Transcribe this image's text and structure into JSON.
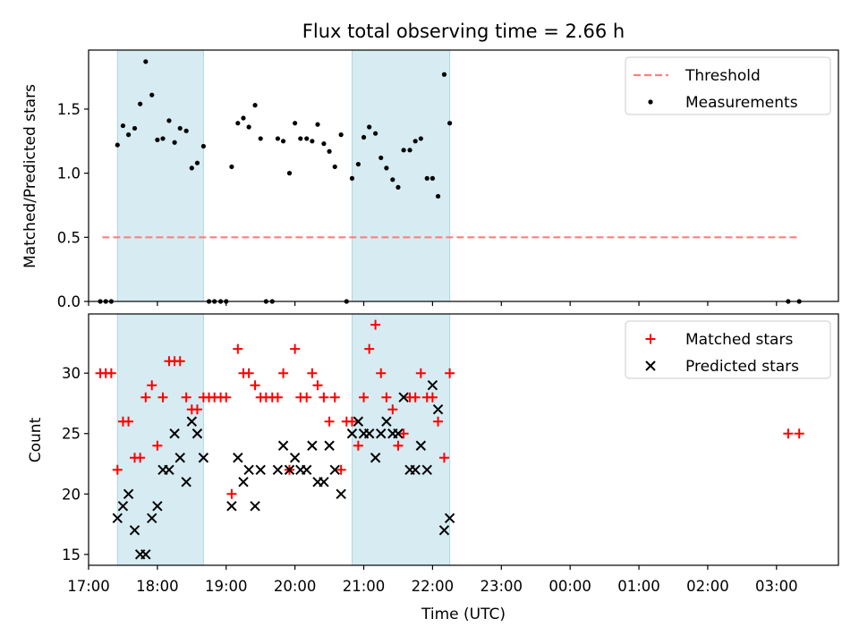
{
  "chart_data": [
    {
      "type": "scatter",
      "title": "Flux total observing time = 2.66 h",
      "xlabel": "",
      "ylabel": "Matched/Predicted stars",
      "xlim": [
        17.0,
        27.9
      ],
      "ylim": [
        0,
        1.96
      ],
      "yticks": [
        0.0,
        0.5,
        1.0,
        1.5
      ],
      "ytick_labels": [
        "0.0",
        "0.5",
        "1.0",
        "1.5"
      ],
      "shaded_spans": [
        [
          17.42,
          18.67
        ],
        [
          20.83,
          22.25
        ]
      ],
      "legend": {
        "position": "top-right",
        "entries": [
          "Threshold",
          "Measurements"
        ]
      },
      "threshold": {
        "name": "Threshold",
        "value": 0.5,
        "x_range": [
          17.2,
          27.3
        ],
        "color": "#ff7f7f"
      },
      "series": [
        {
          "name": "Measurements",
          "color": "#000000",
          "x": [
            17.17,
            17.25,
            17.33,
            17.42,
            17.5,
            17.58,
            17.67,
            17.75,
            17.83,
            17.92,
            18.0,
            18.08,
            18.17,
            18.25,
            18.33,
            18.42,
            18.5,
            18.58,
            18.67,
            18.75,
            18.83,
            18.92,
            19.0,
            19.08,
            19.17,
            19.25,
            19.33,
            19.42,
            19.5,
            19.58,
            19.67,
            19.75,
            19.83,
            19.92,
            20.0,
            20.08,
            20.17,
            20.25,
            20.33,
            20.42,
            20.5,
            20.58,
            20.67,
            20.75,
            20.83,
            20.92,
            21.0,
            21.08,
            21.17,
            21.25,
            21.33,
            21.42,
            21.5,
            21.58,
            21.67,
            21.75,
            21.83,
            21.92,
            22.0,
            22.08,
            22.17,
            22.25,
            27.17,
            27.33
          ],
          "y": [
            0,
            0,
            0,
            1.22,
            1.37,
            1.3,
            1.35,
            1.54,
            1.87,
            1.61,
            1.26,
            1.27,
            1.41,
            1.24,
            1.35,
            1.33,
            1.04,
            1.08,
            1.21,
            0,
            0,
            0,
            0,
            1.05,
            1.39,
            1.43,
            1.36,
            1.53,
            1.27,
            0,
            0,
            1.27,
            1.25,
            1.0,
            1.39,
            1.27,
            1.27,
            1.25,
            1.38,
            1.23,
            1.17,
            1.05,
            1.3,
            0,
            0.96,
            1.07,
            1.28,
            1.36,
            1.31,
            1.12,
            1.04,
            0.95,
            0.89,
            1.18,
            1.18,
            1.25,
            1.27,
            0.96,
            0.96,
            0.82,
            1.77,
            1.39,
            0,
            0
          ]
        }
      ]
    },
    {
      "type": "scatter",
      "title": "",
      "xlabel": "Time (UTC)",
      "ylabel": "Count",
      "xlim": [
        17.0,
        27.9
      ],
      "ylim": [
        14.1,
        34.9
      ],
      "yticks": [
        15,
        20,
        25,
        30
      ],
      "ytick_labels": [
        "15",
        "20",
        "25",
        "30"
      ],
      "xticks": [
        17,
        18,
        19,
        20,
        21,
        22,
        23,
        24,
        25,
        26,
        27
      ],
      "xtick_labels": [
        "17:00",
        "18:00",
        "19:00",
        "20:00",
        "21:00",
        "22:00",
        "23:00",
        "00:00",
        "01:00",
        "02:00",
        "03:00"
      ],
      "shaded_spans": [
        [
          17.42,
          18.67
        ],
        [
          20.83,
          22.25
        ]
      ],
      "legend": {
        "position": "top-right",
        "entries": [
          "Matched stars",
          "Predicted stars"
        ]
      },
      "series": [
        {
          "name": "Matched stars",
          "marker": "+",
          "color": "#ff0000",
          "x": [
            17.17,
            17.25,
            17.33,
            17.42,
            17.5,
            17.58,
            17.67,
            17.75,
            17.83,
            17.92,
            18.0,
            18.08,
            18.17,
            18.25,
            18.33,
            18.42,
            18.5,
            18.58,
            18.67,
            18.75,
            18.83,
            18.92,
            19.0,
            19.08,
            19.17,
            19.25,
            19.33,
            19.42,
            19.5,
            19.58,
            19.67,
            19.75,
            19.83,
            19.92,
            20.0,
            20.08,
            20.17,
            20.25,
            20.33,
            20.42,
            20.5,
            20.58,
            20.67,
            20.75,
            20.83,
            20.92,
            21.0,
            21.08,
            21.17,
            21.25,
            21.33,
            21.42,
            21.5,
            21.58,
            21.67,
            21.75,
            21.83,
            21.92,
            22.0,
            22.08,
            22.17,
            22.25,
            27.17,
            27.33
          ],
          "y": [
            30,
            30,
            30,
            22,
            26,
            26,
            23,
            23,
            28,
            29,
            24,
            28,
            31,
            31,
            31,
            28,
            27,
            27,
            28,
            28,
            28,
            28,
            28,
            20,
            32,
            30,
            30,
            29,
            28,
            28,
            28,
            28,
            30,
            22,
            32,
            28,
            28,
            30,
            29,
            28,
            26,
            28,
            22,
            26,
            26,
            24,
            28,
            32,
            34,
            30,
            28,
            27,
            24,
            25,
            28,
            28,
            30,
            28,
            28,
            26,
            23,
            30,
            25,
            25
          ]
        },
        {
          "name": "Predicted stars",
          "marker": "x",
          "color": "#000000",
          "x": [
            17.42,
            17.5,
            17.58,
            17.67,
            17.75,
            17.83,
            17.92,
            18.0,
            18.08,
            18.17,
            18.25,
            18.33,
            18.42,
            18.5,
            18.58,
            18.67,
            19.08,
            19.17,
            19.25,
            19.33,
            19.42,
            19.5,
            19.75,
            19.83,
            19.92,
            20.0,
            20.08,
            20.17,
            20.25,
            20.33,
            20.42,
            20.5,
            20.58,
            20.67,
            20.83,
            20.92,
            21.0,
            21.08,
            21.17,
            21.25,
            21.33,
            21.42,
            21.5,
            21.58,
            21.67,
            21.75,
            21.83,
            21.92,
            22.0,
            22.08,
            22.17,
            22.25
          ],
          "y": [
            18,
            19,
            20,
            17,
            15,
            15,
            18,
            19,
            22,
            22,
            25,
            23,
            21,
            26,
            25,
            23,
            19,
            23,
            21,
            22,
            19,
            22,
            22,
            24,
            22,
            23,
            22,
            22,
            24,
            21,
            21,
            24,
            22,
            20,
            25,
            26,
            25,
            25,
            23,
            25,
            26,
            25,
            25,
            28,
            22,
            22,
            24,
            22,
            29,
            27,
            17,
            18
          ]
        }
      ]
    }
  ]
}
